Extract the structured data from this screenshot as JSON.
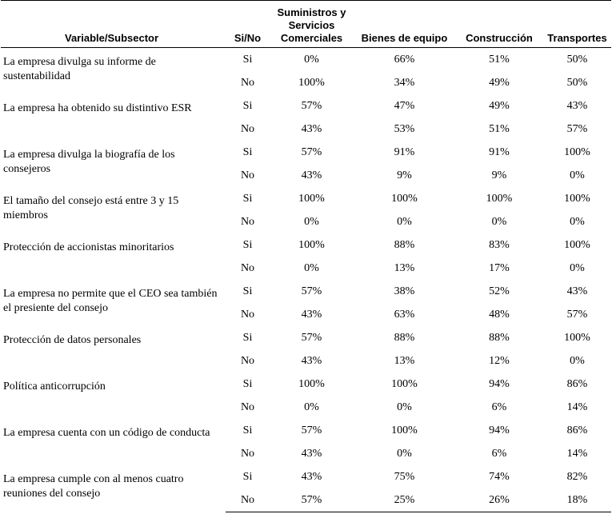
{
  "headers": {
    "variable": "Variable/Subsector",
    "sino": "Si/No",
    "col1": "Suministros y Servicios Comerciales",
    "col2": "Bienes de equipo",
    "col3": "Construcción",
    "col4": "Transportes"
  },
  "rows": [
    {
      "variable": "La empresa divulga su informe de sustentabilidad",
      "si": {
        "label": "Si",
        "values": [
          "0%",
          "66%",
          "51%",
          "50%"
        ]
      },
      "no": {
        "label": "No",
        "values": [
          "100%",
          "34%",
          "49%",
          "50%"
        ]
      }
    },
    {
      "variable": "La empresa ha obtenido su distintivo ESR",
      "si": {
        "label": "Si",
        "values": [
          "57%",
          "47%",
          "49%",
          "43%"
        ]
      },
      "no": {
        "label": "No",
        "values": [
          "43%",
          "53%",
          "51%",
          "57%"
        ]
      }
    },
    {
      "variable": "La empresa divulga la biografía de los consejeros",
      "si": {
        "label": "Si",
        "values": [
          "57%",
          "91%",
          "91%",
          "100%"
        ]
      },
      "no": {
        "label": "No",
        "values": [
          "43%",
          "9%",
          "9%",
          "0%"
        ]
      }
    },
    {
      "variable": "El tamaño del consejo está entre 3 y 15 miembros",
      "si": {
        "label": "Si",
        "values": [
          "100%",
          "100%",
          "100%",
          "100%"
        ]
      },
      "no": {
        "label": "No",
        "values": [
          "0%",
          "0%",
          "0%",
          "0%"
        ]
      }
    },
    {
      "variable": "Protección de accionistas minoritarios",
      "si": {
        "label": "Si",
        "values": [
          "100%",
          "88%",
          "83%",
          "100%"
        ]
      },
      "no": {
        "label": "No",
        "values": [
          "0%",
          "13%",
          "17%",
          "0%"
        ]
      }
    },
    {
      "variable": "La empresa no permite que el CEO sea también el presiente del consejo",
      "si": {
        "label": "Si",
        "values": [
          "57%",
          "38%",
          "52%",
          "43%"
        ]
      },
      "no": {
        "label": "No",
        "values": [
          "43%",
          "63%",
          "48%",
          "57%"
        ]
      }
    },
    {
      "variable": "Protección de datos personales",
      "si": {
        "label": "Si",
        "values": [
          "57%",
          "88%",
          "88%",
          "100%"
        ]
      },
      "no": {
        "label": "No",
        "values": [
          "43%",
          "13%",
          "12%",
          "0%"
        ]
      }
    },
    {
      "variable": "Política anticorrupción",
      "si": {
        "label": "Si",
        "values": [
          "100%",
          "100%",
          "94%",
          "86%"
        ]
      },
      "no": {
        "label": "No",
        "values": [
          "0%",
          "0%",
          "6%",
          "14%"
        ]
      }
    },
    {
      "variable": "La empresa cuenta con un código de conducta",
      "si": {
        "label": "Si",
        "values": [
          "57%",
          "100%",
          "94%",
          "86%"
        ]
      },
      "no": {
        "label": "No",
        "values": [
          "43%",
          "0%",
          "6%",
          "14%"
        ]
      }
    },
    {
      "variable": "La empresa cumple con al menos cuatro reuniones del consejo",
      "si": {
        "label": "Si",
        "values": [
          "43%",
          "75%",
          "74%",
          "82%"
        ]
      },
      "no": {
        "label": "No",
        "values": [
          "57%",
          "25%",
          "26%",
          "18%"
        ]
      }
    }
  ]
}
